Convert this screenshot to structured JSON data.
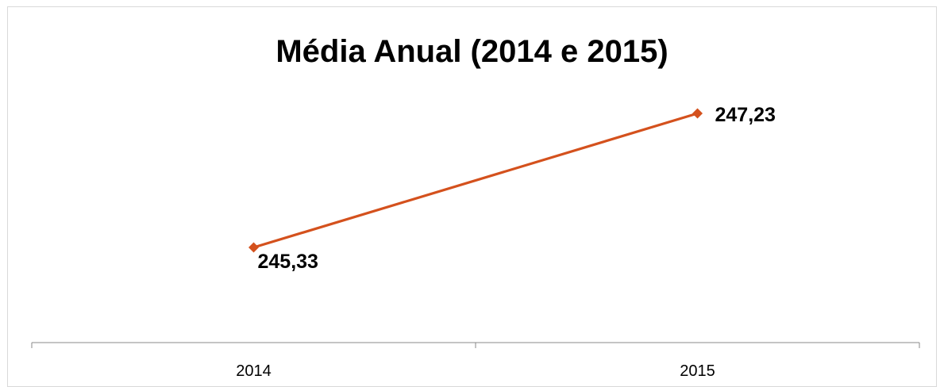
{
  "chart_data": {
    "type": "line",
    "title": "Média Anual (2014 e 2015)",
    "categories": [
      "2014",
      "2015"
    ],
    "series": [
      {
        "values": [
          245.33,
          247.23
        ],
        "data_labels": [
          "245,33",
          "247,23"
        ],
        "color": "#d4511d",
        "marker": "diamond"
      }
    ],
    "xlabel": "",
    "ylabel": "",
    "y_axis_visible": false,
    "grid": false,
    "legend": "none"
  }
}
